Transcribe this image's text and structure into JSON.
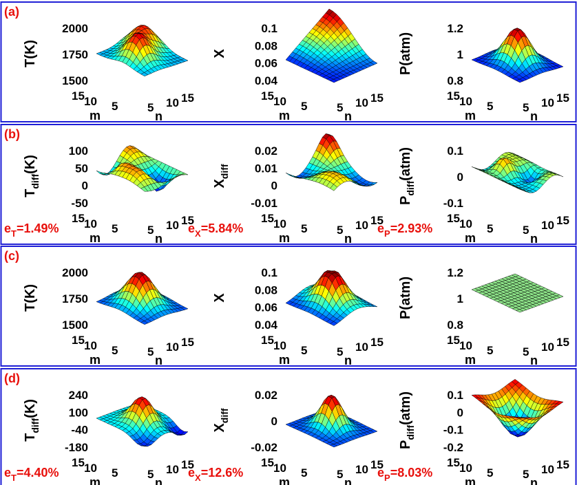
{
  "figure": {
    "panels": [
      {
        "label": "(a)",
        "error_labels": [],
        "plots": [
          {
            "zlabel": "T(K)",
            "zsub": "",
            "zsuffix": "",
            "ticks": [
              "2000",
              "1750",
              "1500"
            ],
            "xlabel": "m",
            "ylabel": "n"
          },
          {
            "zlabel": "X",
            "zsub": "",
            "zsuffix": "",
            "ticks": [
              "0.1",
              "0.08",
              "0.06",
              "0.04"
            ],
            "xlabel": "m",
            "ylabel": "n"
          },
          {
            "zlabel": "P(atm)",
            "zsub": "",
            "zsuffix": "",
            "ticks": [
              "1.2",
              "1",
              "0.8"
            ],
            "xlabel": "m",
            "ylabel": "n"
          }
        ]
      },
      {
        "label": "(b)",
        "error_labels": [
          {
            "base": "e",
            "sub": "T",
            "value": "=1.49%"
          },
          {
            "base": "e",
            "sub": "X",
            "value": "=5.84%"
          },
          {
            "base": "e",
            "sub": "P",
            "value": "=2.93%"
          }
        ],
        "plots": [
          {
            "zlabel": "T",
            "zsub": "diff",
            "zsuffix": "(K)",
            "ticks": [
              "100",
              "50",
              "0",
              "-50"
            ],
            "xlabel": "m",
            "ylabel": "n"
          },
          {
            "zlabel": "X",
            "zsub": "diff",
            "zsuffix": "",
            "ticks": [
              "0.02",
              "0.01",
              "0",
              "-0.01"
            ],
            "xlabel": "m",
            "ylabel": "n"
          },
          {
            "zlabel": "P",
            "zsub": "diff",
            "zsuffix": "(atm)",
            "ticks": [
              "0.1",
              "0",
              "-0.1"
            ],
            "xlabel": "m",
            "ylabel": "n"
          }
        ]
      },
      {
        "label": "(c)",
        "error_labels": [],
        "plots": [
          {
            "zlabel": "T(K)",
            "zsub": "",
            "zsuffix": "",
            "ticks": [
              "2000",
              "1750",
              "1500"
            ],
            "xlabel": "m",
            "ylabel": "n"
          },
          {
            "zlabel": "X",
            "zsub": "",
            "zsuffix": "",
            "ticks": [
              "0.1",
              "0.08",
              "0.06",
              "0.04"
            ],
            "xlabel": "m",
            "ylabel": "n"
          },
          {
            "zlabel": "P(atm)",
            "zsub": "",
            "zsuffix": "",
            "ticks": [
              "1.2",
              "1",
              "0.8"
            ],
            "xlabel": "m",
            "ylabel": "n"
          }
        ]
      },
      {
        "label": "(d)",
        "error_labels": [
          {
            "base": "e",
            "sub": "T",
            "value": "=4.40%"
          },
          {
            "base": "e",
            "sub": "X",
            "value": "=12.6%"
          },
          {
            "base": "e",
            "sub": "P",
            "value": "=8.03%"
          }
        ],
        "plots": [
          {
            "zlabel": "T",
            "zsub": "diff",
            "zsuffix": "(K)",
            "ticks": [
              "240",
              "100",
              "-40",
              "-180"
            ],
            "xlabel": "m",
            "ylabel": "n"
          },
          {
            "zlabel": "X",
            "zsub": "diff",
            "zsuffix": "",
            "ticks": [
              "0.02",
              "0",
              "-0.02"
            ],
            "xlabel": "m",
            "ylabel": "n"
          },
          {
            "zlabel": "P",
            "zsub": "diff",
            "zsuffix": "(atm)",
            "ticks": [
              "0.1",
              "0",
              "-0.1",
              "-0.2"
            ],
            "xlabel": "m",
            "ylabel": "n"
          }
        ]
      }
    ],
    "m_ticks": [
      "15",
      "10",
      "5"
    ],
    "n_ticks": [
      "5",
      "10",
      "15"
    ]
  },
  "colors": {
    "panel_border": "#1f1fd6",
    "panel_label": "#e8100c",
    "error_label": "#e8100c",
    "mesh_edge": "#000000",
    "uniform_surface": "#8fe68a"
  },
  "chart_data": [
    {
      "panel": "(a)",
      "type": "surface",
      "zlabel": "T(K)",
      "x_axis": "m",
      "y_axis": "n",
      "xlim": [
        1,
        15
      ],
      "ylim": [
        1,
        15
      ],
      "zlim": [
        1300,
        2000
      ],
      "z_ticks": [
        1500,
        1750,
        2000
      ],
      "shape": "two-peak ridge surface, peak near 1950 K"
    },
    {
      "panel": "(a)",
      "type": "surface",
      "zlabel": "X",
      "x_axis": "m",
      "y_axis": "n",
      "xlim": [
        1,
        15
      ],
      "ylim": [
        1,
        15
      ],
      "zlim": [
        0.04,
        0.1
      ],
      "z_ticks": [
        0.04,
        0.06,
        0.08,
        0.1
      ],
      "shape": "high edge near 0.1 descending to a valley near 0.04"
    },
    {
      "panel": "(a)",
      "type": "surface",
      "zlabel": "P(atm)",
      "x_axis": "m",
      "y_axis": "n",
      "xlim": [
        1,
        15
      ],
      "ylim": [
        1,
        15
      ],
      "zlim": [
        0.8,
        1.2
      ],
      "z_ticks": [
        0.8,
        1,
        1.2
      ],
      "shape": "central peak near 1.2 with low wings near 0.8"
    },
    {
      "panel": "(b)",
      "type": "surface",
      "zlabel": "T_diff(K)",
      "x_axis": "m",
      "y_axis": "n",
      "xlim": [
        1,
        15
      ],
      "ylim": [
        1,
        15
      ],
      "zlim": [
        -100,
        100
      ],
      "z_ticks": [
        -50,
        0,
        50,
        100
      ],
      "error": "e_T=1.49%",
      "shape": "oscillating difference surface"
    },
    {
      "panel": "(b)",
      "type": "surface",
      "zlabel": "X_diff",
      "x_axis": "m",
      "y_axis": "n",
      "xlim": [
        1,
        15
      ],
      "ylim": [
        1,
        15
      ],
      "zlim": [
        -0.015,
        0.02
      ],
      "z_ticks": [
        -0.01,
        0,
        0.01,
        0.02
      ],
      "error": "e_X=5.84%",
      "shape": "oscillating difference surface"
    },
    {
      "panel": "(b)",
      "type": "surface",
      "zlabel": "P_diff(atm)",
      "x_axis": "m",
      "y_axis": "n",
      "xlim": [
        1,
        15
      ],
      "ylim": [
        1,
        15
      ],
      "zlim": [
        -0.15,
        0.15
      ],
      "z_ticks": [
        -0.1,
        0,
        0.1
      ],
      "error": "e_P=2.93%",
      "shape": "oscillating difference surface"
    },
    {
      "panel": "(c)",
      "type": "surface",
      "zlabel": "T(K)",
      "x_axis": "m",
      "y_axis": "n",
      "xlim": [
        1,
        15
      ],
      "ylim": [
        1,
        15
      ],
      "zlim": [
        1300,
        2050
      ],
      "z_ticks": [
        1500,
        1750,
        2000
      ],
      "shape": "single central peak near 2000 K"
    },
    {
      "panel": "(c)",
      "type": "surface",
      "zlabel": "X",
      "x_axis": "m",
      "y_axis": "n",
      "xlim": [
        1,
        15
      ],
      "ylim": [
        1,
        15
      ],
      "zlim": [
        0.04,
        0.11
      ],
      "z_ticks": [
        0.04,
        0.06,
        0.08,
        0.1
      ],
      "shape": "single central peak near 0.1"
    },
    {
      "panel": "(c)",
      "type": "surface",
      "zlabel": "P(atm)",
      "x_axis": "m",
      "y_axis": "n",
      "xlim": [
        1,
        15
      ],
      "ylim": [
        1,
        15
      ],
      "zlim": [
        0.8,
        1.2
      ],
      "z_ticks": [
        0.8,
        1,
        1.2
      ],
      "shape": "flat plane at 1"
    },
    {
      "panel": "(d)",
      "type": "surface",
      "zlabel": "T_diff(K)",
      "x_axis": "m",
      "y_axis": "n",
      "xlim": [
        1,
        15
      ],
      "ylim": [
        1,
        15
      ],
      "zlim": [
        -180,
        240
      ],
      "z_ticks": [
        -180,
        -40,
        100,
        240
      ],
      "error": "e_T=4.40%",
      "shape": "central peak with depressed corners"
    },
    {
      "panel": "(d)",
      "type": "surface",
      "zlabel": "X_diff",
      "x_axis": "m",
      "y_axis": "n",
      "xlim": [
        1,
        15
      ],
      "ylim": [
        1,
        15
      ],
      "zlim": [
        -0.02,
        0.03
      ],
      "z_ticks": [
        -0.02,
        0,
        0.02
      ],
      "error": "e_X=12.6%",
      "shape": "central peak near 0.03"
    },
    {
      "panel": "(d)",
      "type": "surface",
      "zlabel": "P_diff(atm)",
      "x_axis": "m",
      "y_axis": "n",
      "xlim": [
        1,
        15
      ],
      "ylim": [
        1,
        15
      ],
      "zlim": [
        -0.25,
        0.12
      ],
      "z_ticks": [
        -0.2,
        -0.1,
        0,
        0.1
      ],
      "error": "e_P=8.03%",
      "shape": "inverted bowl, high rim near 0.1 and centre near -0.25"
    }
  ]
}
